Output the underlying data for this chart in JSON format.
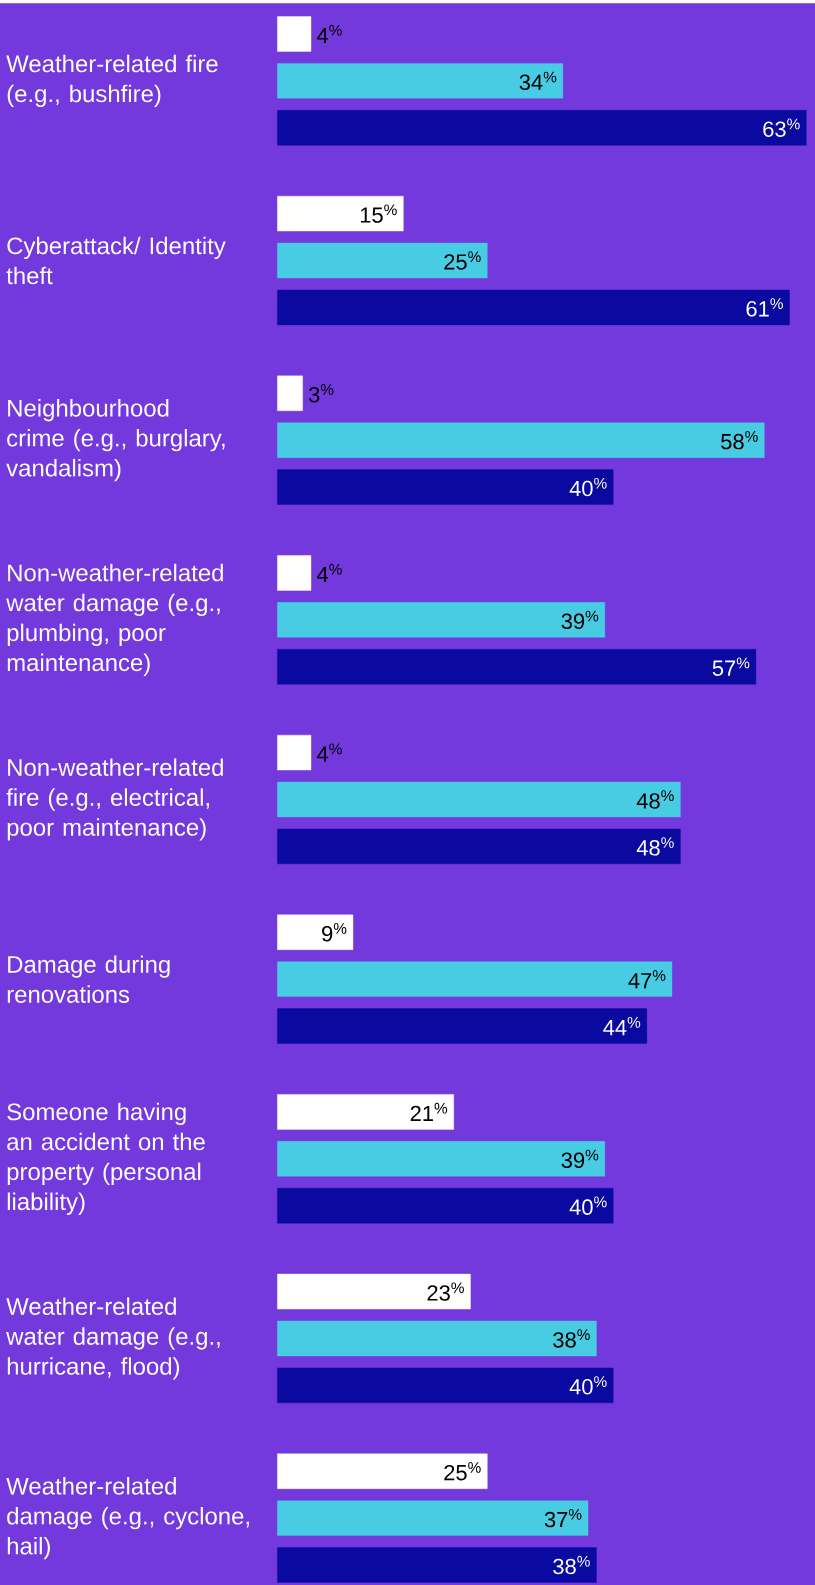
{
  "chart_data": {
    "type": "bar",
    "orientation": "horizontal",
    "categories": [
      "Weather-related fire (e.g., bushfire)",
      "Cyberattack/ Identity theft",
      "Neighbourhood crime (e.g., burglary, vandalism)",
      "Non-weather-related water damage (e.g., plumbing, poor maintenance)",
      "Non-weather-related fire (e.g., electrical, poor maintenance)",
      "Damage during renovations",
      "Someone having an accident on the property (personal liability)",
      "Weather-related water damage (e.g., hurricane, flood)",
      "Weather-related damage (e.g., cyclone, hail)"
    ],
    "series": [
      {
        "color": "#ffffff",
        "values": [
          4,
          15,
          3,
          4,
          4,
          9,
          21,
          23,
          25
        ],
        "value_labels": [
          "4$^{%}$",
          "15$^{%}$",
          "3$^{%}$",
          "4$^{%}$",
          "4$^{%}$",
          "9$^{%}$",
          "21$^{%}$",
          "23$^{%}$",
          "25$^{%}$"
        ]
      },
      {
        "color": "#48cce4",
        "values": [
          34,
          25,
          58,
          39,
          48,
          47,
          39,
          38,
          37
        ],
        "value_labels": [
          "34$^{%}$",
          "25$^{%}$",
          "58$^{%}$",
          "39$^{%}$",
          "48$^{%}$",
          "47$^{%}$",
          "39$^{%}$",
          "38$^{%}$",
          "37$^{%}$"
        ]
      },
      {
        "color": "#0a0aa0",
        "values": [
          63,
          61,
          40,
          57,
          48,
          44,
          40,
          40,
          38
        ],
        "value_labels": [
          "63$^{%}$",
          "61$^{%}$",
          "40$^{%}$",
          "57$^{%}$",
          "48$^{%}$",
          "44$^{%}$",
          "40$^{%}$",
          "40$^{%}$",
          "38$^{%}$"
        ]
      }
    ]
  }
}
